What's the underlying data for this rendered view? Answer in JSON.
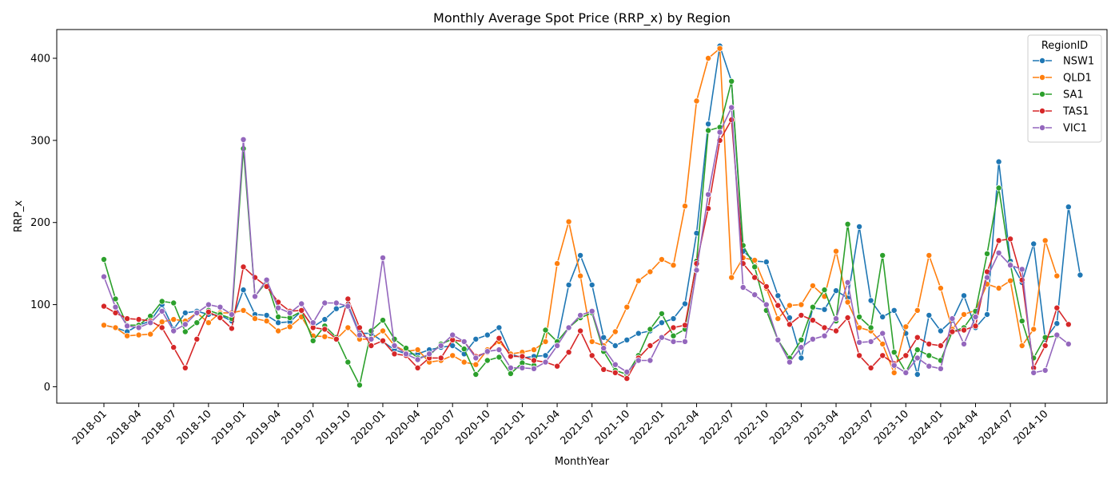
{
  "chart_data": {
    "type": "line",
    "title": "Monthly Average Spot Price (RRP_x) by Region",
    "xlabel": "MonthYear",
    "ylabel": "RRP_x",
    "ylim": [
      -20,
      435
    ],
    "yticks": [
      0,
      100,
      200,
      300,
      400
    ],
    "x_start": "2018-01",
    "xtick_labels": [
      "2018-01",
      "2018-04",
      "2018-07",
      "2018-10",
      "2019-01",
      "2019-04",
      "2019-07",
      "2019-10",
      "2020-01",
      "2020-04",
      "2020-07",
      "2020-10",
      "2021-01",
      "2021-04",
      "2021-07",
      "2021-10",
      "2022-01",
      "2022-04",
      "2022-07",
      "2022-10",
      "2023-01",
      "2023-04",
      "2023-07",
      "2023-10",
      "2024-01",
      "2024-04",
      "2024-07",
      "2024-10"
    ],
    "legend": {
      "title": "RegionID",
      "position": "upper-right"
    },
    "series": [
      {
        "name": "NSW1",
        "color": "#1f77b4",
        "values": [
          75,
          72,
          67,
          75,
          80,
          100,
          70,
          90,
          92,
          88,
          87,
          80,
          118,
          88,
          87,
          78,
          79,
          92,
          73,
          82,
          95,
          100,
          65,
          65,
          55,
          45,
          40,
          40,
          45,
          48,
          50,
          40,
          58,
          63,
          72,
          40,
          35,
          37,
          38,
          55,
          124,
          160,
          124,
          60,
          50,
          57,
          65,
          68,
          78,
          83,
          101,
          187,
          320,
          415,
          372,
          165,
          153,
          152,
          111,
          84,
          35,
          96,
          94,
          117,
          108,
          195,
          105,
          85,
          93,
          65,
          15,
          87,
          68,
          81,
          111,
          72,
          88,
          274,
          153,
          127,
          174,
          58,
          77,
          219,
          136
        ]
      },
      {
        "name": "QLD1",
        "color": "#ff7f0e",
        "values": [
          75,
          72,
          62,
          63,
          64,
          79,
          82,
          80,
          90,
          78,
          90,
          90,
          93,
          83,
          80,
          68,
          73,
          85,
          62,
          61,
          58,
          72,
          58,
          58,
          68,
          50,
          43,
          45,
          30,
          32,
          38,
          30,
          27,
          45,
          55,
          40,
          42,
          45,
          55,
          150,
          201,
          135,
          55,
          50,
          67,
          97,
          129,
          140,
          155,
          148,
          220,
          348,
          400,
          412,
          133,
          157,
          154,
          120,
          83,
          99,
          100,
          123,
          110,
          165,
          103,
          72,
          68,
          52,
          17,
          73,
          93,
          160,
          120,
          70,
          88,
          93,
          125,
          120,
          129,
          50,
          70,
          178,
          135
        ]
      },
      {
        "name": "SA1",
        "color": "#2ca02c",
        "values": [
          155,
          107,
          75,
          75,
          86,
          104,
          102,
          67,
          78,
          93,
          88,
          83,
          290,
          110,
          128,
          85,
          84,
          92,
          56,
          74,
          60,
          30,
          2,
          68,
          81,
          58,
          47,
          35,
          38,
          52,
          58,
          46,
          15,
          32,
          36,
          16,
          29,
          26,
          69,
          55,
          72,
          84,
          90,
          43,
          20,
          15,
          38,
          70,
          89,
          62,
          70,
          153,
          312,
          316,
          372,
          172,
          146,
          93,
          57,
          35,
          57,
          97,
          118,
          80,
          198,
          85,
          72,
          160,
          42,
          18,
          45,
          38,
          32,
          67,
          72,
          92,
          162,
          242,
          149,
          80,
          35,
          60,
          62
        ]
      },
      {
        "name": "TAS1",
        "color": "#d62728",
        "values": [
          98,
          90,
          83,
          82,
          80,
          72,
          48,
          23,
          58,
          91,
          84,
          71,
          146,
          133,
          122,
          103,
          92,
          93,
          72,
          70,
          58,
          107,
          72,
          50,
          56,
          40,
          38,
          23,
          35,
          35,
          57,
          55,
          37,
          42,
          59,
          37,
          37,
          32,
          30,
          25,
          42,
          68,
          38,
          21,
          17,
          10,
          35,
          50,
          60,
          72,
          75,
          150,
          217,
          300,
          325,
          150,
          133,
          122,
          99,
          76,
          87,
          81,
          72,
          68,
          84,
          38,
          23,
          38,
          28,
          38,
          60,
          52,
          50,
          67,
          69,
          74,
          140,
          178,
          180,
          130,
          23,
          50,
          96,
          76
        ]
      },
      {
        "name": "VIC1",
        "color": "#9467bd",
        "values": [
          134,
          97,
          74,
          72,
          78,
          92,
          68,
          76,
          90,
          100,
          97,
          88,
          301,
          110,
          130,
          96,
          90,
          101,
          78,
          102,
          102,
          98,
          63,
          58,
          157,
          50,
          40,
          33,
          40,
          50,
          63,
          55,
          35,
          43,
          45,
          23,
          23,
          22,
          30,
          50,
          72,
          87,
          92,
          47,
          27,
          18,
          32,
          32,
          60,
          55,
          55,
          142,
          234,
          310,
          340,
          121,
          112,
          100,
          57,
          30,
          48,
          58,
          62,
          83,
          127,
          54,
          55,
          65,
          26,
          17,
          35,
          25,
          22,
          83,
          52,
          85,
          133,
          163,
          148,
          143,
          17,
          20,
          63,
          52
        ]
      }
    ]
  }
}
